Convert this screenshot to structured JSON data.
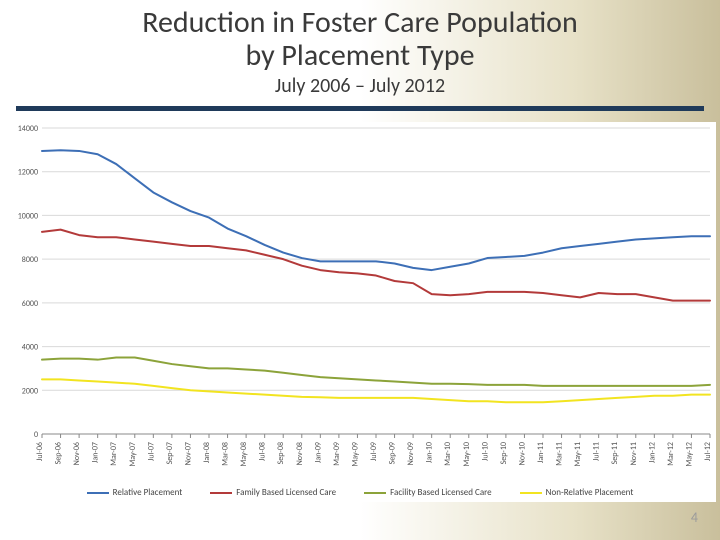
{
  "title_line1": "Reduction in Foster Care Population",
  "title_line2": "by Placement Type",
  "subtitle": "July 2006 – July 2012",
  "page_number": "4",
  "chart": {
    "type": "line",
    "ylim": [
      0,
      14000
    ],
    "ytick_step": 2000,
    "yticks": [
      0,
      2000,
      4000,
      6000,
      8000,
      10000,
      12000,
      14000
    ],
    "axis_font_size": 8,
    "grid_color": "#d9d9d9",
    "axis_color": "#888888",
    "background_color": "#ffffff",
    "line_width": 2,
    "x_labels": [
      "Jul-06",
      "Sep-06",
      "Nov-06",
      "Jan-07",
      "Mar-07",
      "May-07",
      "Jul-07",
      "Sep-07",
      "Nov-07",
      "Jan-08",
      "Mar-08",
      "May-08",
      "Jul-08",
      "Sep-08",
      "Nov-08",
      "Jan-09",
      "Mar-09",
      "May-09",
      "Jul-09",
      "Sep-09",
      "Nov-09",
      "Jan-10",
      "Mar-10",
      "May-10",
      "Jul-10",
      "Sep-10",
      "Nov-10",
      "Jan-11",
      "Mar-11",
      "May-11",
      "Jul-11",
      "Sep-11",
      "Nov-11",
      "Jan-12",
      "Mar-12",
      "May-12",
      "Jul-12"
    ],
    "series": [
      {
        "name": "Relative Placement",
        "color": "#3d6fb6",
        "values": [
          12950,
          12980,
          12950,
          12800,
          12350,
          11700,
          11050,
          10600,
          10200,
          9900,
          9400,
          9050,
          8650,
          8300,
          8050,
          7900,
          7900,
          7900,
          7900,
          7800,
          7600,
          7500,
          7650,
          7800,
          8050,
          8100,
          8150,
          8300,
          8500,
          8600,
          8700,
          8800,
          8900,
          8950,
          9000,
          9050,
          9050
        ]
      },
      {
        "name": "Family Based Licensed Care",
        "color": "#b33a3a",
        "values": [
          9250,
          9350,
          9100,
          9000,
          9000,
          8900,
          8800,
          8700,
          8600,
          8600,
          8500,
          8400,
          8200,
          8000,
          7700,
          7500,
          7400,
          7350,
          7250,
          7000,
          6900,
          6400,
          6350,
          6400,
          6500,
          6500,
          6500,
          6450,
          6350,
          6250,
          6450,
          6400,
          6400,
          6250,
          6100,
          6100,
          6100
        ]
      },
      {
        "name": "Facility Based Licensed Care",
        "color": "#8ca33a",
        "values": [
          3400,
          3450,
          3450,
          3400,
          3500,
          3500,
          3350,
          3200,
          3100,
          3000,
          3000,
          2950,
          2900,
          2800,
          2700,
          2600,
          2550,
          2500,
          2450,
          2400,
          2350,
          2300,
          2300,
          2280,
          2250,
          2250,
          2250,
          2200,
          2200,
          2200,
          2200,
          2200,
          2200,
          2200,
          2200,
          2200,
          2250
        ]
      },
      {
        "name": "Non-Relative Placement",
        "color": "#f2e420",
        "values": [
          2500,
          2500,
          2450,
          2400,
          2350,
          2300,
          2200,
          2100,
          2000,
          1950,
          1900,
          1850,
          1800,
          1750,
          1700,
          1680,
          1650,
          1650,
          1650,
          1650,
          1650,
          1600,
          1550,
          1500,
          1500,
          1450,
          1450,
          1450,
          1500,
          1550,
          1600,
          1650,
          1700,
          1750,
          1750,
          1800,
          1800
        ]
      }
    ],
    "legend_font_size": 9
  }
}
